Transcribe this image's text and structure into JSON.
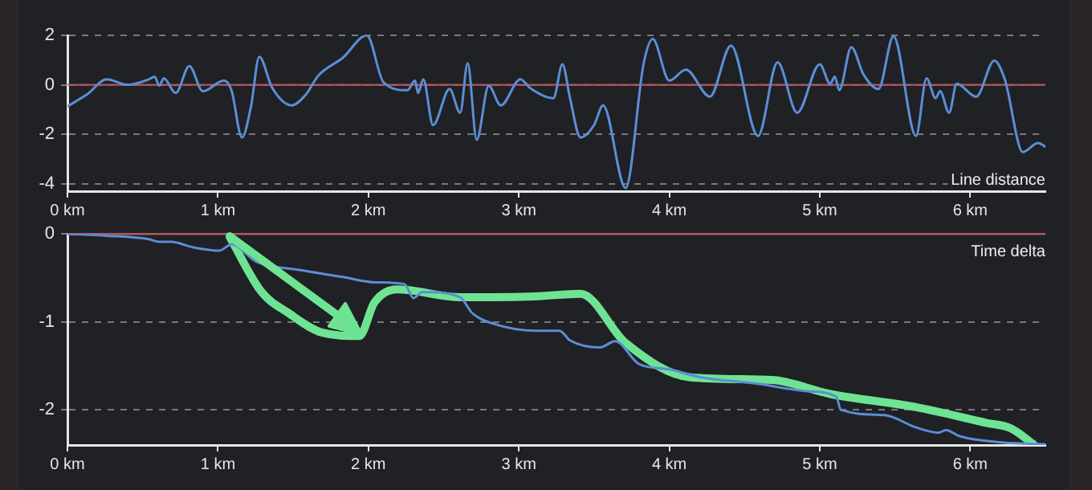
{
  "chart_data": [
    {
      "type": "line",
      "marker": "none",
      "grid": "y",
      "xlim": [
        0,
        6.5
      ],
      "ylim": [
        -4.3,
        2
      ],
      "xticks": [
        {
          "value": 0,
          "label": "0 km"
        },
        {
          "value": 1,
          "label": "1 km"
        },
        {
          "value": 2,
          "label": "2 km"
        },
        {
          "value": 3,
          "label": "3 km"
        },
        {
          "value": 4,
          "label": "4 km"
        },
        {
          "value": 5,
          "label": "5 km"
        },
        {
          "value": 6,
          "label": "6 km"
        }
      ],
      "yticks": [
        -4,
        -2,
        0,
        2
      ],
      "ref_lines": [
        {
          "axis": "y",
          "value": 0,
          "color": "#b4565e"
        }
      ],
      "series": [
        {
          "name": "Line distance",
          "color": "#5b8ed6",
          "x": [
            0,
            0.13,
            0.26,
            0.4,
            0.54,
            0.58,
            0.61,
            0.64,
            0.72,
            0.81,
            0.9,
            1.04,
            1.09,
            1.16,
            1.22,
            1.275,
            1.36,
            1.49,
            1.58,
            1.67,
            1.83,
            1.99,
            2.1,
            2.26,
            2.31,
            2.33,
            2.365,
            2.43,
            2.54,
            2.61,
            2.66,
            2.72,
            2.8,
            2.88,
            3.01,
            3.08,
            3.23,
            3.29,
            3.34,
            3.41,
            3.5,
            3.56,
            3.71,
            3.83,
            3.89,
            4.0,
            4.11,
            4.27,
            4.41,
            4.59,
            4.72,
            4.85,
            5.0,
            5.07,
            5.1,
            5.13,
            5.21,
            5.29,
            5.39,
            5.49,
            5.64,
            5.71,
            5.77,
            5.8,
            5.86,
            5.91,
            6.04,
            6.16,
            6.23,
            6.35,
            6.45,
            6.5
          ],
          "values": [
            -0.87,
            -0.39,
            0.22,
            0,
            0.22,
            0.33,
            -0.04,
            0.26,
            -0.33,
            0.76,
            -0.26,
            0.17,
            -0.22,
            -2.13,
            -0.87,
            1.13,
            -0.11,
            -0.83,
            -0.43,
            0.39,
            1.09,
            2.0,
            0.11,
            -0.22,
            0.17,
            -0.33,
            0.22,
            -1.63,
            -0.17,
            -1.13,
            0.87,
            -2.22,
            -0.04,
            -0.83,
            0.22,
            -0.15,
            -0.54,
            0.83,
            -0.54,
            -2.13,
            -1.63,
            -0.83,
            -4.17,
            0.87,
            1.85,
            0.17,
            0.61,
            -0.48,
            1.59,
            -2.07,
            0.91,
            -1.13,
            0.83,
            0.04,
            0.33,
            -0.22,
            1.52,
            0.43,
            -0.17,
            1.96,
            -2.07,
            0.26,
            -0.54,
            -0.26,
            -1.13,
            0.04,
            -0.48,
            0.98,
            0.22,
            -2.72,
            -2.35,
            -2.5
          ]
        }
      ]
    },
    {
      "type": "line",
      "marker": "none",
      "grid": "y",
      "xlim": [
        0,
        6.5
      ],
      "ylim": [
        -2.4,
        0
      ],
      "xticks": [
        {
          "value": 0,
          "label": "0 km"
        },
        {
          "value": 1,
          "label": "1 km"
        },
        {
          "value": 2,
          "label": "2 km"
        },
        {
          "value": 3,
          "label": "3 km"
        },
        {
          "value": 4,
          "label": "4 km"
        },
        {
          "value": 5,
          "label": "5 km"
        },
        {
          "value": 6,
          "label": "6 km"
        }
      ],
      "yticks": [
        -2,
        -1,
        0
      ],
      "ref_lines": [
        {
          "axis": "y",
          "value": 0,
          "color": "#b4565e"
        }
      ],
      "series": [
        {
          "name": "Time delta",
          "color": "#5b8ed6",
          "x": [
            0,
            0.26,
            0.54,
            0.61,
            0.69,
            0.83,
            1.01,
            1.09,
            1.26,
            1.54,
            1.83,
            2.04,
            2.24,
            2.3,
            2.36,
            2.61,
            2.69,
            2.83,
            3.11,
            3.27,
            3.34,
            3.54,
            3.64,
            3.8,
            4.0,
            4.21,
            4.57,
            4.93,
            5.11,
            5.14,
            5.43,
            5.64,
            5.79,
            5.84,
            5.93,
            6.21,
            6.5
          ],
          "values": [
            0,
            -0.02,
            -0.06,
            -0.09,
            -0.09,
            -0.15,
            -0.19,
            -0.12,
            -0.32,
            -0.41,
            -0.49,
            -0.55,
            -0.57,
            -0.73,
            -0.66,
            -0.72,
            -0.9,
            -1.02,
            -1.1,
            -1.1,
            -1.21,
            -1.29,
            -1.22,
            -1.48,
            -1.54,
            -1.63,
            -1.7,
            -1.79,
            -1.85,
            -2.0,
            -2.06,
            -2.2,
            -2.26,
            -2.23,
            -2.3,
            -2.37,
            -2.39
          ]
        },
        {
          "color": "#6fe394",
          "x": [
            1.08,
            1.29,
            1.47,
            1.69,
            1.94,
            2.04,
            2.19,
            2.61,
            3.11,
            3.41,
            3.71,
            4.14,
            4.68,
            5.07,
            5.64,
            6.11,
            6.27,
            6.42
          ],
          "values": [
            -0.04,
            -0.66,
            -0.9,
            -1.12,
            -1.16,
            -0.78,
            -0.63,
            -0.72,
            -0.71,
            -0.68,
            -1.24,
            -1.63,
            -1.66,
            -1.82,
            -1.97,
            -2.15,
            -2.21,
            -2.39
          ]
        }
      ]
    }
  ]
}
